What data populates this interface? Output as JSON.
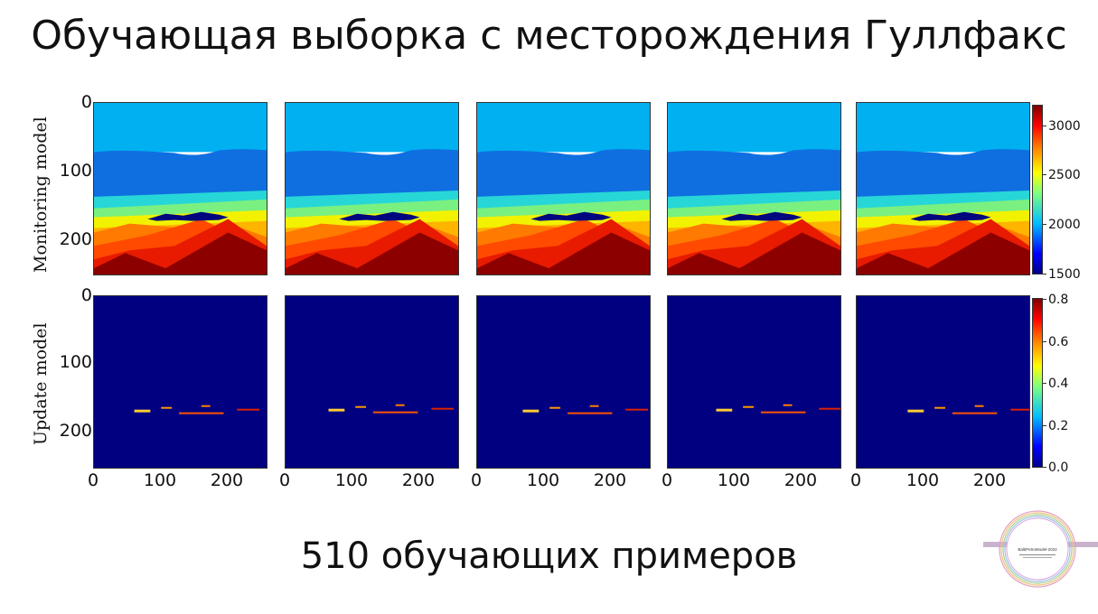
{
  "slide": {
    "title": "Обучающая выборка с месторождения Гуллфакс",
    "footer": "510 обучающих примеров"
  },
  "figure": {
    "rows": [
      {
        "ylabel": "Monitoring model",
        "yticks": [
          "0",
          "100",
          "200"
        ]
      },
      {
        "ylabel": "Update model",
        "yticks": [
          "0",
          "100",
          "200"
        ]
      }
    ],
    "xticks": [
      "0",
      "100",
      "200"
    ],
    "panels_per_row": 5,
    "colorbar_top": {
      "ticks": [
        "3000",
        "2500",
        "2000",
        "1500"
      ],
      "range": [
        1500,
        3200
      ]
    },
    "colorbar_bottom": {
      "ticks": [
        "0.8",
        "0.6",
        "0.4",
        "0.2",
        "0.0"
      ],
      "range": [
        0.0,
        0.8
      ]
    },
    "colormap": "jet"
  },
  "logo": {
    "text": "BaltiPetroModel-2022"
  }
}
